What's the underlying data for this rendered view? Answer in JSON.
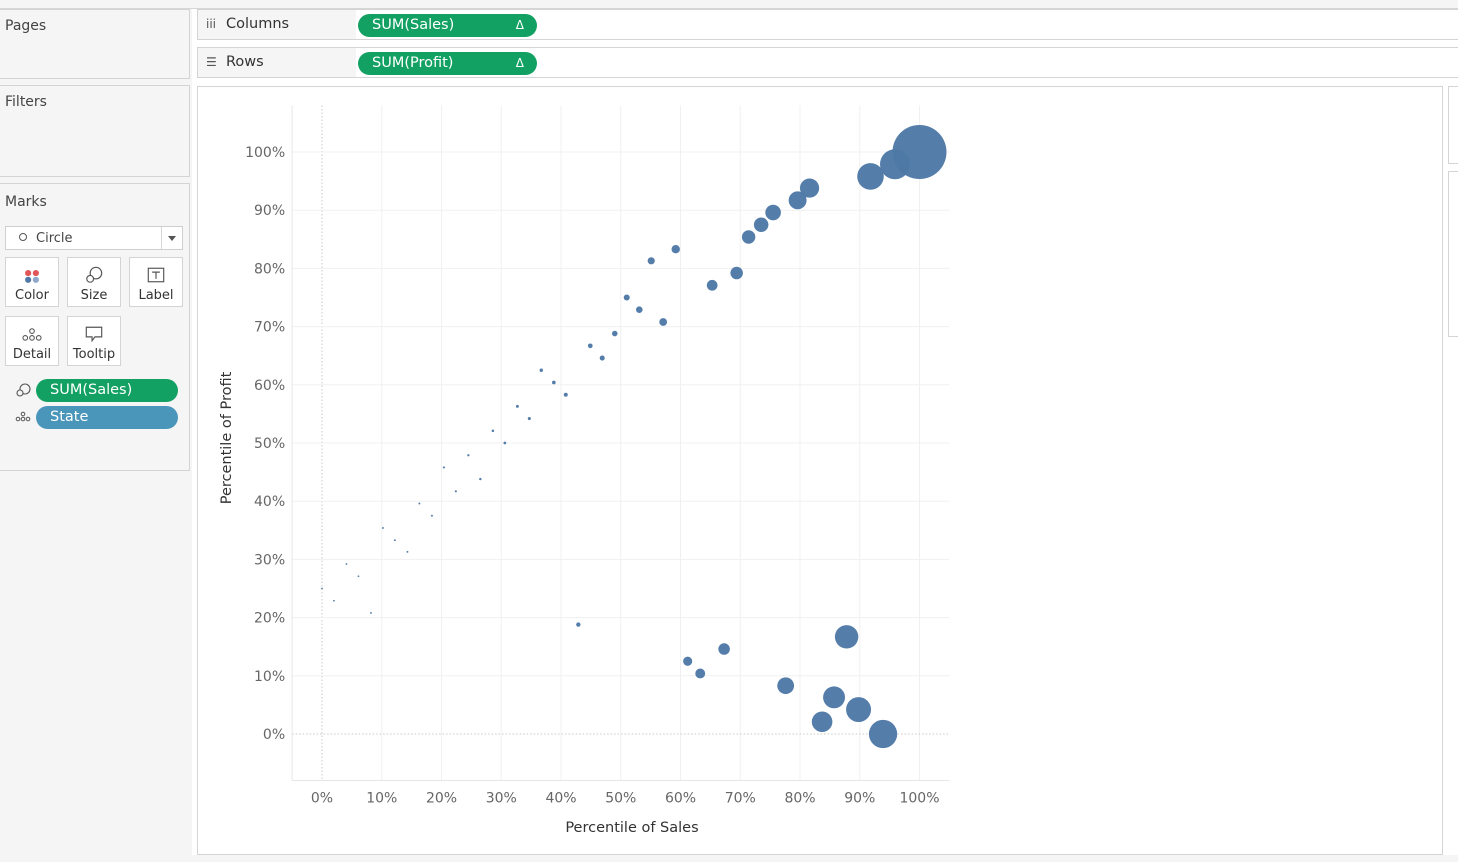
{
  "cards": {
    "pages_title": "Pages",
    "filters_title": "Filters",
    "marks_title": "Marks"
  },
  "marks": {
    "mark_type": "Circle",
    "buttons": {
      "color": "Color",
      "size": "Size",
      "label": "Label",
      "detail": "Detail",
      "tooltip": "Tooltip"
    },
    "fields": [
      {
        "role": "size",
        "label": "SUM(Sales)",
        "color": "#13a163"
      },
      {
        "role": "detail",
        "label": "State",
        "color": "#4a96bb"
      }
    ]
  },
  "shelves": {
    "columns": {
      "label": "Columns",
      "pill": "SUM(Sales)",
      "delta": "Δ"
    },
    "rows": {
      "label": "Rows",
      "pill": "SUM(Profit)",
      "delta": "Δ"
    }
  },
  "chart_data": {
    "type": "scatter",
    "xlabel": "Percentile of Sales",
    "ylabel": "Percentile of Profit",
    "xlim": [
      -0.05,
      1.05
    ],
    "ylim": [
      -0.08,
      1.08
    ],
    "xticks": [
      "0%",
      "10%",
      "20%",
      "30%",
      "40%",
      "50%",
      "60%",
      "70%",
      "80%",
      "90%",
      "100%"
    ],
    "yticks": [
      "0%",
      "10%",
      "20%",
      "30%",
      "40%",
      "50%",
      "60%",
      "70%",
      "80%",
      "90%",
      "100%"
    ],
    "grid": true,
    "mark_color": "#4e79a7",
    "points": [
      {
        "x": 0.0,
        "y": 0.25
      },
      {
        "x": 0.02,
        "y": 0.229
      },
      {
        "x": 0.041,
        "y": 0.292
      },
      {
        "x": 0.061,
        "y": 0.271
      },
      {
        "x": 0.082,
        "y": 0.208
      },
      {
        "x": 0.102,
        "y": 0.354
      },
      {
        "x": 0.122,
        "y": 0.333
      },
      {
        "x": 0.143,
        "y": 0.313
      },
      {
        "x": 0.163,
        "y": 0.396
      },
      {
        "x": 0.184,
        "y": 0.375
      },
      {
        "x": 0.204,
        "y": 0.458
      },
      {
        "x": 0.224,
        "y": 0.417
      },
      {
        "x": 0.245,
        "y": 0.479
      },
      {
        "x": 0.265,
        "y": 0.438
      },
      {
        "x": 0.286,
        "y": 0.521
      },
      {
        "x": 0.306,
        "y": 0.5
      },
      {
        "x": 0.327,
        "y": 0.563
      },
      {
        "x": 0.347,
        "y": 0.542
      },
      {
        "x": 0.367,
        "y": 0.625
      },
      {
        "x": 0.388,
        "y": 0.604
      },
      {
        "x": 0.408,
        "y": 0.583
      },
      {
        "x": 0.429,
        "y": 0.188
      },
      {
        "x": 0.449,
        "y": 0.667
      },
      {
        "x": 0.469,
        "y": 0.646
      },
      {
        "x": 0.49,
        "y": 0.688
      },
      {
        "x": 0.51,
        "y": 0.75
      },
      {
        "x": 0.531,
        "y": 0.729
      },
      {
        "x": 0.551,
        "y": 0.813
      },
      {
        "x": 0.571,
        "y": 0.708
      },
      {
        "x": 0.592,
        "y": 0.833
      },
      {
        "x": 0.612,
        "y": 0.125
      },
      {
        "x": 0.633,
        "y": 0.104
      },
      {
        "x": 0.653,
        "y": 0.771
      },
      {
        "x": 0.673,
        "y": 0.146
      },
      {
        "x": 0.694,
        "y": 0.792
      },
      {
        "x": 0.714,
        "y": 0.854
      },
      {
        "x": 0.735,
        "y": 0.875
      },
      {
        "x": 0.755,
        "y": 0.896
      },
      {
        "x": 0.776,
        "y": 0.083
      },
      {
        "x": 0.796,
        "y": 0.917
      },
      {
        "x": 0.816,
        "y": 0.938
      },
      {
        "x": 0.837,
        "y": 0.021
      },
      {
        "x": 0.857,
        "y": 0.063
      },
      {
        "x": 0.878,
        "y": 0.167
      },
      {
        "x": 0.898,
        "y": 0.042
      },
      {
        "x": 0.918,
        "y": 0.958
      },
      {
        "x": 0.939,
        "y": 0.0
      },
      {
        "x": 0.959,
        "y": 0.979
      },
      {
        "x": 1.0,
        "y": 1.0
      }
    ]
  }
}
